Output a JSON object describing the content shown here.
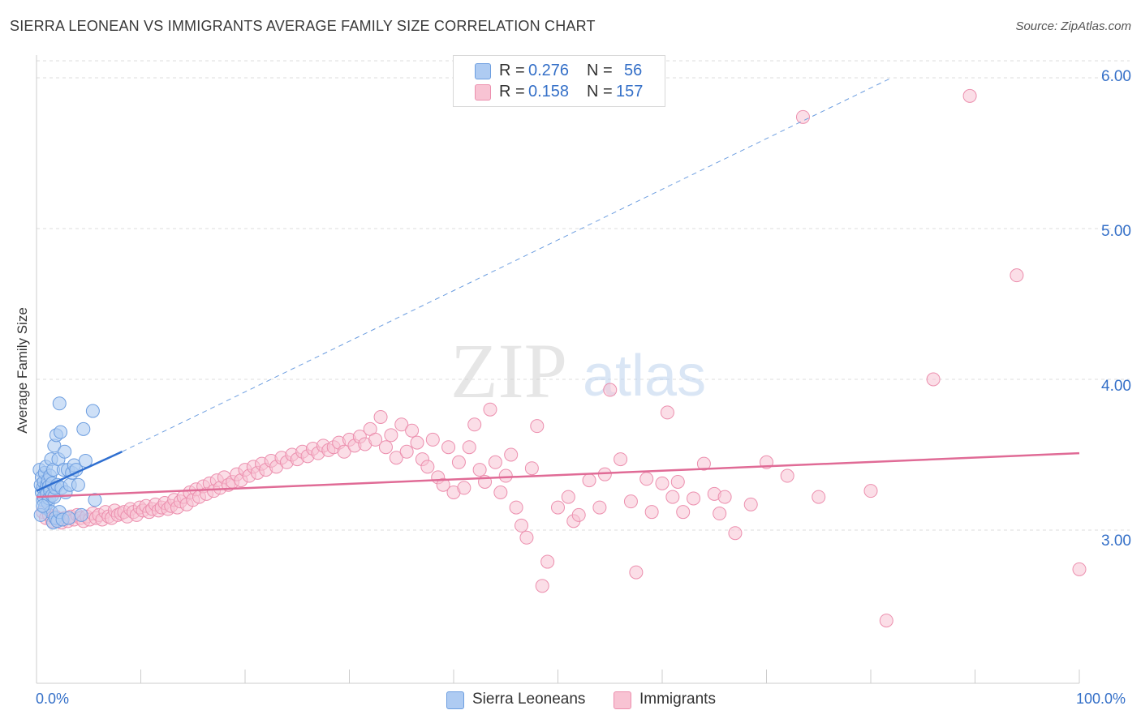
{
  "title": "SIERRA LEONEAN VS IMMIGRANTS AVERAGE FAMILY SIZE CORRELATION CHART",
  "source": "Source: ZipAtlas.com",
  "watermark": {
    "zip": "ZIP",
    "atlas": "atlas"
  },
  "legend_top": {
    "rows": [
      {
        "r_label": "R =",
        "r_value": "0.276",
        "n_label": "N =",
        "n_value": "56"
      },
      {
        "r_label": "R =",
        "r_value": "0.158",
        "n_label": "N =",
        "n_value": "157"
      }
    ]
  },
  "legend_bottom": [
    "Sierra Leoneans",
    "Immigrants"
  ],
  "colors": {
    "blue_fill": "#aecbf2",
    "blue_stroke": "#6d9ee0",
    "blue_line": "#2f6fd0",
    "pink_fill": "#f8c3d3",
    "pink_stroke": "#ec8fae",
    "pink_line": "#e06b96",
    "axis_text": "#3570c8",
    "grid": "#dddddd"
  },
  "chart_data": {
    "type": "scatter",
    "xlabel": "",
    "ylabel": "Average Family Size",
    "xlim": [
      0,
      100
    ],
    "ylim": [
      2.0,
      6.1
    ],
    "x_tick_labels": [
      "0.0%",
      "100.0%"
    ],
    "y_ticks": [
      3.0,
      4.0,
      5.0,
      6.0
    ],
    "y_tick_labels": [
      "3.00",
      "4.00",
      "5.00",
      "6.00"
    ],
    "grid": true,
    "legend_position": "top-center",
    "series": [
      {
        "name": "Sierra Leoneans",
        "r": 0.276,
        "n": 56,
        "trend": {
          "x0": 0,
          "y0": 3.26,
          "x1": 8.2,
          "y1": 3.52,
          "dashed_to_x": 82,
          "dashed_to_y": 6.0
        },
        "points": [
          [
            0.3,
            3.4
          ],
          [
            0.4,
            3.3
          ],
          [
            0.5,
            3.25
          ],
          [
            0.5,
            3.35
          ],
          [
            0.6,
            3.2
          ],
          [
            0.6,
            3.28
          ],
          [
            0.7,
            3.32
          ],
          [
            0.7,
            3.22
          ],
          [
            0.8,
            3.38
          ],
          [
            0.8,
            3.15
          ],
          [
            0.9,
            3.42
          ],
          [
            0.9,
            3.27
          ],
          [
            1.0,
            3.3
          ],
          [
            1.0,
            3.24
          ],
          [
            1.1,
            3.33
          ],
          [
            1.1,
            3.18
          ],
          [
            1.2,
            3.29
          ],
          [
            1.2,
            3.21
          ],
          [
            1.3,
            3.36
          ],
          [
            1.3,
            3.26
          ],
          [
            1.4,
            3.47
          ],
          [
            1.4,
            3.12
          ],
          [
            1.5,
            3.31
          ],
          [
            1.5,
            3.23
          ],
          [
            1.6,
            3.05
          ],
          [
            1.6,
            3.4
          ],
          [
            1.7,
            3.56
          ],
          [
            1.7,
            3.22
          ],
          [
            1.8,
            3.28
          ],
          [
            1.8,
            3.08
          ],
          [
            1.9,
            3.63
          ],
          [
            2.0,
            3.3
          ],
          [
            2.0,
            3.06
          ],
          [
            2.1,
            3.47
          ],
          [
            2.2,
            3.84
          ],
          [
            2.2,
            3.12
          ],
          [
            2.3,
            3.65
          ],
          [
            2.4,
            3.28
          ],
          [
            2.5,
            3.07
          ],
          [
            2.6,
            3.4
          ],
          [
            2.7,
            3.52
          ],
          [
            2.8,
            3.25
          ],
          [
            3.0,
            3.4
          ],
          [
            3.1,
            3.08
          ],
          [
            3.2,
            3.3
          ],
          [
            3.4,
            3.38
          ],
          [
            3.6,
            3.43
          ],
          [
            3.8,
            3.4
          ],
          [
            4.0,
            3.3
          ],
          [
            4.3,
            3.1
          ],
          [
            4.5,
            3.67
          ],
          [
            4.7,
            3.46
          ],
          [
            5.4,
            3.79
          ],
          [
            5.6,
            3.2
          ],
          [
            0.4,
            3.1
          ],
          [
            0.6,
            3.16
          ]
        ]
      },
      {
        "name": "Immigrants",
        "r": 0.158,
        "n": 157,
        "trend": {
          "x0": 0,
          "y0": 3.22,
          "x1": 100,
          "y1": 3.51
        },
        "points": [
          [
            0.6,
            3.12
          ],
          [
            0.9,
            3.08
          ],
          [
            1.2,
            3.1
          ],
          [
            1.5,
            3.06
          ],
          [
            1.8,
            3.09
          ],
          [
            2.1,
            3.07
          ],
          [
            2.4,
            3.05
          ],
          [
            2.7,
            3.08
          ],
          [
            3.0,
            3.06
          ],
          [
            3.3,
            3.09
          ],
          [
            3.6,
            3.07
          ],
          [
            3.9,
            3.1
          ],
          [
            4.2,
            3.08
          ],
          [
            4.5,
            3.06
          ],
          [
            4.8,
            3.09
          ],
          [
            5.1,
            3.07
          ],
          [
            5.4,
            3.11
          ],
          [
            5.7,
            3.08
          ],
          [
            6.0,
            3.1
          ],
          [
            6.3,
            3.07
          ],
          [
            6.6,
            3.12
          ],
          [
            6.9,
            3.09
          ],
          [
            7.2,
            3.08
          ],
          [
            7.5,
            3.13
          ],
          [
            7.8,
            3.1
          ],
          [
            8.1,
            3.11
          ],
          [
            8.4,
            3.12
          ],
          [
            8.7,
            3.09
          ],
          [
            9.0,
            3.14
          ],
          [
            9.3,
            3.12
          ],
          [
            9.6,
            3.1
          ],
          [
            9.9,
            3.15
          ],
          [
            10.2,
            3.13
          ],
          [
            10.5,
            3.16
          ],
          [
            10.8,
            3.12
          ],
          [
            11.1,
            3.14
          ],
          [
            11.4,
            3.17
          ],
          [
            11.7,
            3.13
          ],
          [
            12.0,
            3.15
          ],
          [
            12.3,
            3.18
          ],
          [
            12.6,
            3.14
          ],
          [
            12.9,
            3.16
          ],
          [
            13.2,
            3.2
          ],
          [
            13.5,
            3.15
          ],
          [
            13.8,
            3.19
          ],
          [
            14.1,
            3.22
          ],
          [
            14.4,
            3.17
          ],
          [
            14.7,
            3.25
          ],
          [
            15.0,
            3.2
          ],
          [
            15.3,
            3.27
          ],
          [
            15.6,
            3.22
          ],
          [
            16.0,
            3.29
          ],
          [
            16.3,
            3.24
          ],
          [
            16.6,
            3.31
          ],
          [
            17.0,
            3.26
          ],
          [
            17.3,
            3.33
          ],
          [
            17.6,
            3.28
          ],
          [
            18.0,
            3.35
          ],
          [
            18.4,
            3.3
          ],
          [
            18.8,
            3.32
          ],
          [
            19.2,
            3.37
          ],
          [
            19.6,
            3.33
          ],
          [
            20.0,
            3.4
          ],
          [
            20.4,
            3.36
          ],
          [
            20.8,
            3.42
          ],
          [
            21.2,
            3.38
          ],
          [
            21.6,
            3.44
          ],
          [
            22.0,
            3.4
          ],
          [
            22.5,
            3.46
          ],
          [
            23.0,
            3.42
          ],
          [
            23.5,
            3.48
          ],
          [
            24.0,
            3.45
          ],
          [
            24.5,
            3.5
          ],
          [
            25.0,
            3.47
          ],
          [
            25.5,
            3.52
          ],
          [
            26.0,
            3.49
          ],
          [
            26.5,
            3.54
          ],
          [
            27.0,
            3.51
          ],
          [
            27.5,
            3.56
          ],
          [
            28.0,
            3.53
          ],
          [
            28.5,
            3.55
          ],
          [
            29.0,
            3.58
          ],
          [
            29.5,
            3.52
          ],
          [
            30.0,
            3.6
          ],
          [
            30.5,
            3.56
          ],
          [
            31.0,
            3.62
          ],
          [
            31.5,
            3.57
          ],
          [
            32.0,
            3.67
          ],
          [
            32.5,
            3.6
          ],
          [
            33.0,
            3.75
          ],
          [
            33.5,
            3.55
          ],
          [
            34.0,
            3.63
          ],
          [
            34.5,
            3.48
          ],
          [
            35.0,
            3.7
          ],
          [
            35.5,
            3.52
          ],
          [
            36.0,
            3.66
          ],
          [
            36.5,
            3.58
          ],
          [
            37.0,
            3.47
          ],
          [
            37.5,
            3.42
          ],
          [
            38.0,
            3.6
          ],
          [
            38.5,
            3.35
          ],
          [
            39.0,
            3.3
          ],
          [
            39.5,
            3.55
          ],
          [
            40.0,
            3.25
          ],
          [
            40.5,
            3.45
          ],
          [
            41.0,
            3.28
          ],
          [
            41.5,
            3.55
          ],
          [
            42.0,
            3.7
          ],
          [
            42.5,
            3.4
          ],
          [
            43.0,
            3.32
          ],
          [
            43.5,
            3.8
          ],
          [
            44.0,
            3.45
          ],
          [
            44.5,
            3.25
          ],
          [
            45.0,
            3.36
          ],
          [
            45.5,
            3.5
          ],
          [
            46.0,
            3.15
          ],
          [
            46.5,
            3.03
          ],
          [
            47.0,
            2.95
          ],
          [
            47.5,
            3.41
          ],
          [
            48.0,
            3.69
          ],
          [
            48.5,
            2.63
          ],
          [
            49.0,
            2.79
          ],
          [
            50.0,
            3.15
          ],
          [
            51.0,
            3.22
          ],
          [
            51.5,
            3.06
          ],
          [
            52.0,
            3.1
          ],
          [
            53.0,
            3.33
          ],
          [
            54.0,
            3.15
          ],
          [
            54.5,
            3.37
          ],
          [
            55.0,
            3.93
          ],
          [
            56.0,
            3.47
          ],
          [
            57.0,
            3.19
          ],
          [
            57.5,
            2.72
          ],
          [
            58.5,
            3.34
          ],
          [
            59.0,
            3.12
          ],
          [
            60.0,
            3.31
          ],
          [
            60.5,
            3.78
          ],
          [
            61.0,
            3.22
          ],
          [
            61.5,
            3.32
          ],
          [
            62.0,
            3.12
          ],
          [
            63.0,
            3.21
          ],
          [
            64.0,
            3.44
          ],
          [
            65.0,
            3.24
          ],
          [
            65.5,
            3.11
          ],
          [
            66.0,
            3.22
          ],
          [
            67.0,
            2.98
          ],
          [
            68.5,
            3.17
          ],
          [
            70.0,
            3.45
          ],
          [
            72.0,
            3.36
          ],
          [
            73.5,
            5.74
          ],
          [
            75.0,
            3.22
          ],
          [
            80.0,
            3.26
          ],
          [
            81.5,
            2.4
          ],
          [
            86.0,
            4.0
          ],
          [
            89.5,
            5.88
          ],
          [
            94.0,
            4.69
          ],
          [
            100.0,
            2.74
          ]
        ]
      }
    ]
  }
}
